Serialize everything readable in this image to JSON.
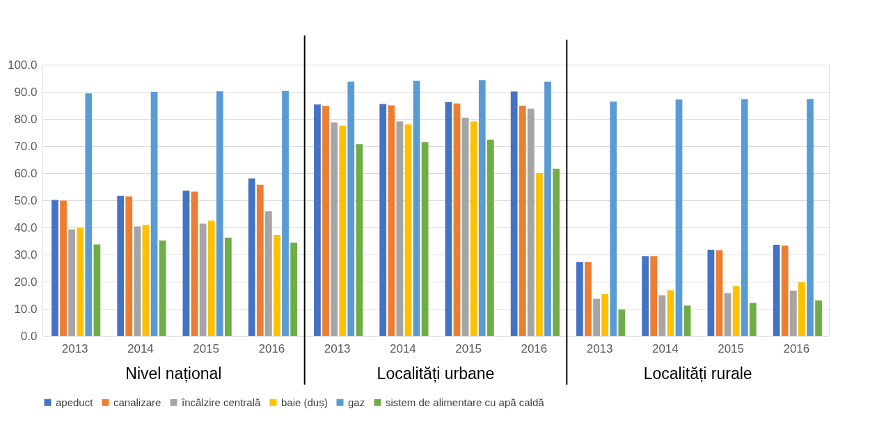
{
  "chart_data": {
    "type": "bar",
    "categories": [
      "2013",
      "2014",
      "2015",
      "2016",
      "2013",
      "2014",
      "2015",
      "2016",
      "2013",
      "2014",
      "2015",
      "2016"
    ],
    "series": [
      {
        "name": "apeduct",
        "color": "#4472c4",
        "values": [
          50.1,
          51.6,
          53.5,
          58.1,
          85.3,
          85.5,
          86.2,
          90.1,
          27.2,
          29.4,
          31.8,
          33.6
        ]
      },
      {
        "name": "canalizare",
        "color": "#ed7d31",
        "values": [
          49.9,
          51.4,
          53.2,
          55.7,
          84.8,
          85.0,
          85.7,
          84.9,
          27.2,
          29.4,
          31.6,
          33.3
        ]
      },
      {
        "name": "încălzire centrală",
        "color": "#a5a5a5",
        "values": [
          39.3,
          40.4,
          41.4,
          46.0,
          78.7,
          79.1,
          80.4,
          83.8,
          13.7,
          15.0,
          15.8,
          16.7
        ]
      },
      {
        "name": "baie (duș)",
        "color": "#ffc000",
        "values": [
          39.8,
          40.9,
          42.5,
          37.2,
          77.5,
          78.0,
          79.1,
          60.0,
          15.4,
          16.8,
          18.4,
          19.8
        ]
      },
      {
        "name": "gaz",
        "color": "#5b9bd5",
        "values": [
          89.4,
          90.0,
          90.2,
          90.3,
          93.7,
          94.1,
          94.3,
          93.7,
          86.4,
          87.2,
          87.3,
          87.4
        ]
      },
      {
        "name": "sistem de alimentare cu apă caldă",
        "color": "#70ad47",
        "values": [
          33.7,
          35.2,
          36.2,
          34.4,
          70.7,
          71.5,
          72.4,
          61.6,
          9.7,
          11.2,
          12.2,
          13.1
        ]
      }
    ],
    "ylim": [
      0,
      100
    ],
    "yticks": [
      {
        "value": 0,
        "label": "0.0"
      },
      {
        "value": 10,
        "label": "10.0"
      },
      {
        "value": 20,
        "label": "20.0"
      },
      {
        "value": 30,
        "label": "30.0"
      },
      {
        "value": 40,
        "label": "40.0"
      },
      {
        "value": 50,
        "label": "50.0"
      },
      {
        "value": 60,
        "label": "60.0"
      },
      {
        "value": 70,
        "label": "70.0"
      },
      {
        "value": 80,
        "label": "80.0"
      },
      {
        "value": 90,
        "label": "90.0"
      },
      {
        "value": 100,
        "label": "100.0"
      }
    ],
    "grid": "y",
    "legend": "bottom",
    "annotations": [
      "Nivel național",
      "Localități urbane",
      "Localități rurale"
    ]
  }
}
